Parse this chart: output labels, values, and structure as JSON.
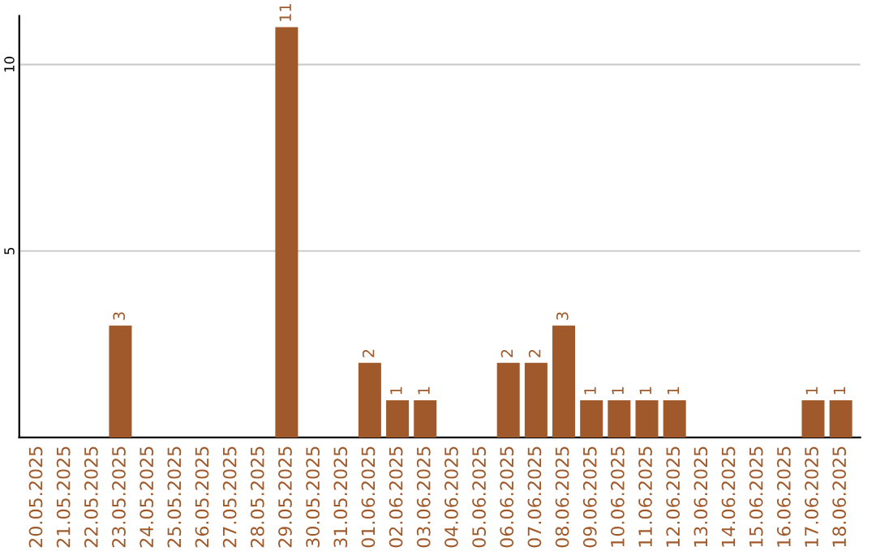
{
  "chart_data": {
    "type": "bar",
    "categories": [
      "20.05.2025",
      "21.05.2025",
      "22.05.2025",
      "23.05.2025",
      "24.05.2025",
      "25.05.2025",
      "26.05.2025",
      "27.05.2025",
      "28.05.2025",
      "29.05.2025",
      "30.05.2025",
      "31.05.2025",
      "01.06.2025",
      "02.06.2025",
      "03.06.2025",
      "04.06.2025",
      "05.06.2025",
      "06.06.2025",
      "07.06.2025",
      "08.06.2025",
      "09.06.2025",
      "10.06.2025",
      "11.06.2025",
      "12.06.2025",
      "13.06.2025",
      "14.06.2025",
      "15.06.2025",
      "16.06.2025",
      "17.06.2025",
      "18.06.2025"
    ],
    "values": [
      0,
      0,
      0,
      3,
      0,
      0,
      0,
      0,
      0,
      11,
      0,
      0,
      2,
      1,
      1,
      0,
      0,
      2,
      2,
      3,
      1,
      1,
      1,
      1,
      0,
      0,
      0,
      0,
      1,
      1
    ],
    "value_labels": [
      null,
      null,
      null,
      "3",
      null,
      null,
      null,
      null,
      null,
      "11",
      null,
      null,
      "2",
      "1",
      "1",
      null,
      null,
      "2",
      "2",
      "3",
      "1",
      "1",
      "1",
      "1",
      null,
      null,
      null,
      null,
      "1",
      "1"
    ],
    "color": "#a0592a",
    "ylim": [
      0,
      11.3
    ],
    "yticks": [
      5,
      10
    ],
    "grid": "y",
    "legend": false
  }
}
